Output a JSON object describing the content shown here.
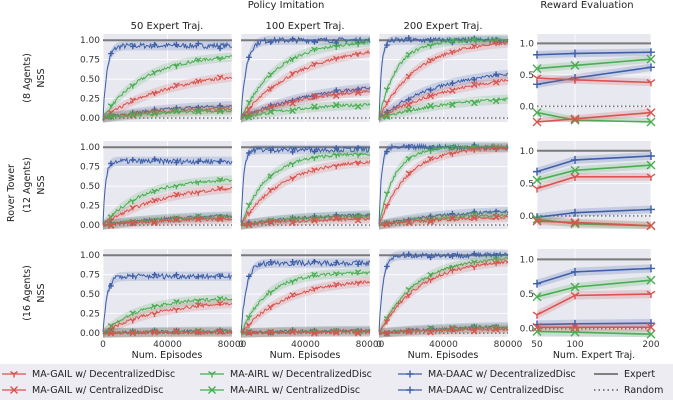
{
  "figure": {
    "group_title_left": "Policy Imitation",
    "group_title_right": "Reward Evaluation",
    "col_titles": [
      "50 Expert Traj.",
      "100 Expert Traj.",
      "200 Expert Traj."
    ],
    "row_group_label": "Rover Tower",
    "row_labels": [
      "(8 Agents)",
      "(12 Agents)",
      "(16 Agents)"
    ],
    "ylabel": "NSS",
    "xlabel_policy": "Num. Episodes",
    "xlabel_reward": "Num. Expert Traj.",
    "policy_xticks": [
      "0",
      "40000",
      "80000"
    ],
    "reward_xticks": [
      "50",
      "100",
      "200"
    ],
    "policy_yticks": [
      "0.00",
      "0.25",
      "0.50",
      "0.75",
      "1.00"
    ],
    "reward_yticks": [
      "0.0",
      "0.5",
      "1.0"
    ]
  },
  "legend": [
    {
      "label": "MA-GAIL w/ DecentralizedDisc",
      "color": "#d9534f",
      "marker": "tri"
    },
    {
      "label": "MA-GAIL w/ CentralizedDisc",
      "color": "#d9534f",
      "marker": "x"
    },
    {
      "label": "MA-AIRL w/ DecentralizedDisc",
      "color": "#4aad52",
      "marker": "tri"
    },
    {
      "label": "MA-AIRL w/ CentralizedDisc",
      "color": "#4aad52",
      "marker": "x"
    },
    {
      "label": "MA-DAAC w/ DecentralizedDisc",
      "color": "#3e5fa8",
      "marker": "plus"
    },
    {
      "label": "MA-DAAC w/ CentralizedDisc",
      "color": "#3e5fa8",
      "marker": "plus"
    },
    {
      "label": "Expert",
      "color": "#808080",
      "marker": "line"
    },
    {
      "label": "Random",
      "color": "#808080",
      "marker": "dots"
    }
  ],
  "chart_data": {
    "type": "line",
    "policy_x_range": [
      0,
      80000
    ],
    "policy_ylim": [
      -0.05,
      1.08
    ],
    "reward_x": [
      50,
      100,
      200
    ],
    "expert_level": 1.0,
    "random_level": 0.0,
    "policy_curves": [
      [
        {
          "series": "MA-DAAC",
          "color": "#3e5fa8",
          "final": 0.93,
          "t": 0.03,
          "start": 0.0
        },
        {
          "series": "MA-AIRL",
          "color": "#4aad52",
          "final": 0.82,
          "t": 0.32,
          "start": 0.0
        },
        {
          "series": "MA-GAIL",
          "color": "#d9534f",
          "final": 0.63,
          "t": 0.55,
          "start": 0.0
        },
        {
          "series": "MA-DAAC Central",
          "color": "#3e5fa8",
          "final": 0.19,
          "t": 0.55,
          "start": 0.0
        },
        {
          "series": "MA-GAIL Central",
          "color": "#d9534f",
          "final": 0.15,
          "t": 0.6,
          "start": 0.0
        },
        {
          "series": "MA-AIRL Central",
          "color": "#4aad52",
          "final": 0.12,
          "t": 0.6,
          "start": 0.0
        }
      ],
      [
        {
          "series": "MA-DAAC",
          "color": "#3e5fa8",
          "final": 1.0,
          "t": 0.04,
          "start": 0.0
        },
        {
          "series": "MA-AIRL",
          "color": "#4aad52",
          "final": 1.0,
          "t": 0.28,
          "start": 0.0
        },
        {
          "series": "MA-GAIL",
          "color": "#d9534f",
          "final": 0.95,
          "t": 0.45,
          "start": 0.0
        },
        {
          "series": "MA-DAAC Central",
          "color": "#3e5fa8",
          "final": 0.48,
          "t": 0.6,
          "start": 0.0
        },
        {
          "series": "MA-GAIL Central",
          "color": "#d9534f",
          "final": 0.45,
          "t": 0.65,
          "start": 0.0
        },
        {
          "series": "MA-AIRL Central",
          "color": "#4aad52",
          "final": 0.2,
          "t": 0.5,
          "start": 0.0
        }
      ],
      [
        {
          "series": "MA-DAAC",
          "color": "#3e5fa8",
          "final": 1.0,
          "t": 0.02,
          "start": 0.0
        },
        {
          "series": "MA-AIRL",
          "color": "#4aad52",
          "final": 1.0,
          "t": 0.14,
          "start": 0.0
        },
        {
          "series": "MA-GAIL",
          "color": "#d9534f",
          "final": 1.0,
          "t": 0.3,
          "start": 0.0
        },
        {
          "series": "MA-DAAC Central",
          "color": "#3e5fa8",
          "final": 0.63,
          "t": 0.45,
          "start": 0.0
        },
        {
          "series": "MA-GAIL Central",
          "color": "#d9534f",
          "final": 0.62,
          "t": 0.65,
          "start": 0.0
        },
        {
          "series": "MA-AIRL Central",
          "color": "#4aad52",
          "final": 0.3,
          "t": 0.6,
          "start": 0.0
        }
      ],
      [
        {
          "series": "MA-DAAC",
          "color": "#3e5fa8",
          "final": 0.82,
          "t": 0.02,
          "start": 0.0
        },
        {
          "series": "MA-AIRL",
          "color": "#4aad52",
          "final": 0.6,
          "t": 0.3,
          "start": 0.0
        },
        {
          "series": "MA-GAIL",
          "color": "#d9534f",
          "final": 0.53,
          "t": 0.45,
          "start": 0.0
        },
        {
          "series": "MA-DAAC Central",
          "color": "#3e5fa8",
          "final": 0.14,
          "t": 0.55,
          "start": 0.0
        },
        {
          "series": "MA-AIRL Central",
          "color": "#4aad52",
          "final": 0.12,
          "t": 0.5,
          "start": 0.0
        },
        {
          "series": "MA-GAIL Central",
          "color": "#d9534f",
          "final": 0.1,
          "t": 0.6,
          "start": 0.0
        }
      ],
      [
        {
          "series": "MA-DAAC",
          "color": "#3e5fa8",
          "final": 0.97,
          "t": 0.02,
          "start": 0.0
        },
        {
          "series": "MA-AIRL",
          "color": "#4aad52",
          "final": 0.92,
          "t": 0.2,
          "start": 0.0
        },
        {
          "series": "MA-GAIL",
          "color": "#d9534f",
          "final": 0.85,
          "t": 0.32,
          "start": 0.0
        },
        {
          "series": "MA-DAAC Central",
          "color": "#3e5fa8",
          "final": 0.15,
          "t": 0.5,
          "start": 0.0
        },
        {
          "series": "MA-AIRL Central",
          "color": "#4aad52",
          "final": 0.13,
          "t": 0.45,
          "start": 0.0
        },
        {
          "series": "MA-GAIL Central",
          "color": "#d9534f",
          "final": 0.1,
          "t": 0.55,
          "start": 0.0
        }
      ],
      [
        {
          "series": "MA-DAAC",
          "color": "#3e5fa8",
          "final": 1.0,
          "t": 0.02,
          "start": 0.0
        },
        {
          "series": "MA-AIRL",
          "color": "#4aad52",
          "final": 1.0,
          "t": 0.12,
          "start": 0.0
        },
        {
          "series": "MA-GAIL",
          "color": "#d9534f",
          "final": 1.0,
          "t": 0.22,
          "start": 0.0
        },
        {
          "series": "MA-DAAC Central",
          "color": "#3e5fa8",
          "final": 0.2,
          "t": 0.5,
          "start": 0.0
        },
        {
          "series": "MA-AIRL Central",
          "color": "#4aad52",
          "final": 0.15,
          "t": 0.5,
          "start": 0.0
        },
        {
          "series": "MA-GAIL Central",
          "color": "#d9534f",
          "final": 0.12,
          "t": 0.55,
          "start": 0.0
        }
      ],
      [
        {
          "series": "MA-DAAC",
          "color": "#3e5fa8",
          "final": 0.73,
          "t": 0.03,
          "start": 0.0
        },
        {
          "series": "MA-AIRL",
          "color": "#4aad52",
          "final": 0.46,
          "t": 0.3,
          "start": 0.0
        },
        {
          "series": "MA-GAIL",
          "color": "#d9534f",
          "final": 0.42,
          "t": 0.42,
          "start": 0.0
        },
        {
          "series": "MA-DAAC Central",
          "color": "#3e5fa8",
          "final": 0.03,
          "t": 0.5,
          "start": 0.0
        },
        {
          "series": "MA-AIRL Central",
          "color": "#4aad52",
          "final": 0.02,
          "t": 0.5,
          "start": 0.0
        },
        {
          "series": "MA-GAIL Central",
          "color": "#d9534f",
          "final": 0.01,
          "t": 0.5,
          "start": 0.0
        }
      ],
      [
        {
          "series": "MA-DAAC",
          "color": "#3e5fa8",
          "final": 0.9,
          "t": 0.04,
          "start": 0.0
        },
        {
          "series": "MA-AIRL",
          "color": "#4aad52",
          "final": 0.78,
          "t": 0.2,
          "start": 0.0
        },
        {
          "series": "MA-GAIL",
          "color": "#d9534f",
          "final": 0.7,
          "t": 0.35,
          "start": 0.0
        },
        {
          "series": "MA-DAAC Central",
          "color": "#3e5fa8",
          "final": 0.04,
          "t": 0.5,
          "start": 0.0
        },
        {
          "series": "MA-AIRL Central",
          "color": "#4aad52",
          "final": 0.03,
          "t": 0.5,
          "start": 0.0
        },
        {
          "series": "MA-GAIL Central",
          "color": "#d9534f",
          "final": 0.02,
          "t": 0.5,
          "start": 0.0
        }
      ],
      [
        {
          "series": "MA-DAAC",
          "color": "#3e5fa8",
          "final": 1.0,
          "t": 0.03,
          "start": 0.0
        },
        {
          "series": "MA-AIRL",
          "color": "#4aad52",
          "final": 0.98,
          "t": 0.28,
          "start": 0.0
        },
        {
          "series": "MA-GAIL",
          "color": "#d9534f",
          "final": 0.96,
          "t": 0.32,
          "start": 0.0
        },
        {
          "series": "MA-DAAC Central",
          "color": "#3e5fa8",
          "final": 0.1,
          "t": 0.55,
          "start": 0.0
        },
        {
          "series": "MA-AIRL Central",
          "color": "#4aad52",
          "final": 0.08,
          "t": 0.55,
          "start": 0.0
        },
        {
          "series": "MA-GAIL Central",
          "color": "#d9534f",
          "final": 0.06,
          "t": 0.55,
          "start": 0.0
        }
      ]
    ],
    "reward_rows": [
      {
        "ylim": [
          -0.25,
          1.15
        ],
        "series": [
          {
            "name": "MA-DAAC w/ DecentralizedDisc",
            "color": "#3e5fa8",
            "marker": "plus",
            "values": [
              0.82,
              0.84,
              0.86
            ]
          },
          {
            "name": "MA-DAAC w/ CentralizedDisc",
            "color": "#3e5fa8",
            "marker": "plus",
            "values": [
              0.35,
              0.45,
              0.62
            ]
          },
          {
            "name": "MA-AIRL w/ DecentralizedDisc",
            "color": "#4aad52",
            "marker": "x",
            "values": [
              0.6,
              0.65,
              0.75
            ]
          },
          {
            "name": "MA-AIRL w/ CentralizedDisc",
            "color": "#4aad52",
            "marker": "x",
            "values": [
              -0.1,
              -0.22,
              -0.25
            ]
          },
          {
            "name": "MA-GAIL w/ DecentralizedDisc",
            "color": "#d9534f",
            "marker": "tri",
            "values": [
              0.45,
              0.42,
              0.38
            ]
          },
          {
            "name": "MA-GAIL w/ CentralizedDisc",
            "color": "#d9534f",
            "marker": "x",
            "values": [
              -0.25,
              -0.2,
              -0.1
            ]
          }
        ]
      },
      {
        "ylim": [
          -0.2,
          1.15
        ],
        "series": [
          {
            "name": "MA-DAAC w/ DecentralizedDisc",
            "color": "#3e5fa8",
            "marker": "plus",
            "values": [
              0.68,
              0.86,
              0.92
            ]
          },
          {
            "name": "MA-DAAC w/ CentralizedDisc",
            "color": "#3e5fa8",
            "marker": "plus",
            "values": [
              -0.02,
              0.05,
              0.1
            ]
          },
          {
            "name": "MA-AIRL w/ DecentralizedDisc",
            "color": "#4aad52",
            "marker": "x",
            "values": [
              0.55,
              0.7,
              0.78
            ]
          },
          {
            "name": "MA-AIRL w/ CentralizedDisc",
            "color": "#4aad52",
            "marker": "x",
            "values": [
              -0.05,
              -0.12,
              -0.15
            ]
          },
          {
            "name": "MA-GAIL w/ DecentralizedDisc",
            "color": "#d9534f",
            "marker": "tri",
            "values": [
              0.42,
              0.6,
              0.6
            ]
          },
          {
            "name": "MA-GAIL w/ CentralizedDisc",
            "color": "#d9534f",
            "marker": "x",
            "values": [
              -0.08,
              -0.1,
              -0.15
            ]
          }
        ]
      },
      {
        "ylim": [
          -0.12,
          1.15
        ],
        "series": [
          {
            "name": "MA-DAAC w/ DecentralizedDisc",
            "color": "#3e5fa8",
            "marker": "plus",
            "values": [
              0.65,
              0.82,
              0.87
            ]
          },
          {
            "name": "MA-DAAC w/ CentralizedDisc",
            "color": "#3e5fa8",
            "marker": "plus",
            "values": [
              0.06,
              0.07,
              0.08
            ]
          },
          {
            "name": "MA-AIRL w/ DecentralizedDisc",
            "color": "#4aad52",
            "marker": "x",
            "values": [
              0.46,
              0.6,
              0.7
            ]
          },
          {
            "name": "MA-AIRL w/ CentralizedDisc",
            "color": "#4aad52",
            "marker": "x",
            "values": [
              -0.04,
              -0.05,
              -0.08
            ]
          },
          {
            "name": "MA-GAIL w/ DecentralizedDisc",
            "color": "#d9534f",
            "marker": "tri",
            "values": [
              0.2,
              0.48,
              0.5
            ]
          },
          {
            "name": "MA-GAIL w/ CentralizedDisc",
            "color": "#d9534f",
            "marker": "x",
            "values": [
              0.02,
              0.02,
              0.02
            ]
          }
        ]
      }
    ]
  }
}
